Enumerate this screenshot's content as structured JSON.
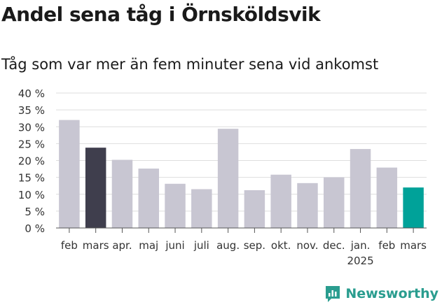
{
  "title": "Andel sena tåg i Örnsköldsvik",
  "subtitle": "Tåg som var mer än fem minuter sena vid ankomst",
  "brand": "Newsworthy",
  "chart_data": {
    "type": "bar",
    "categories": [
      "feb",
      "mars",
      "apr.",
      "maj",
      "juni",
      "juli",
      "aug.",
      "sep.",
      "okt.",
      "nov.",
      "dec.",
      "jan.",
      "feb",
      "mars"
    ],
    "year_label": "2025",
    "values": [
      32,
      23.8,
      20.2,
      17.6,
      13.1,
      11.5,
      29.4,
      11.2,
      15.8,
      13.3,
      15.0,
      23.4,
      17.9,
      12.0
    ],
    "bar_colors": [
      "#c8c6d2",
      "#3f3e4d",
      "#c8c6d2",
      "#c8c6d2",
      "#c8c6d2",
      "#c8c6d2",
      "#c8c6d2",
      "#c8c6d2",
      "#c8c6d2",
      "#c8c6d2",
      "#c8c6d2",
      "#c8c6d2",
      "#c8c6d2",
      "#00a299"
    ],
    "yticks": [
      "0 %",
      "5 %",
      "10 %",
      "15 %",
      "20 %",
      "25 %",
      "30 %",
      "35 %",
      "40 %"
    ],
    "ylim": [
      0,
      40
    ],
    "grid": true
  }
}
